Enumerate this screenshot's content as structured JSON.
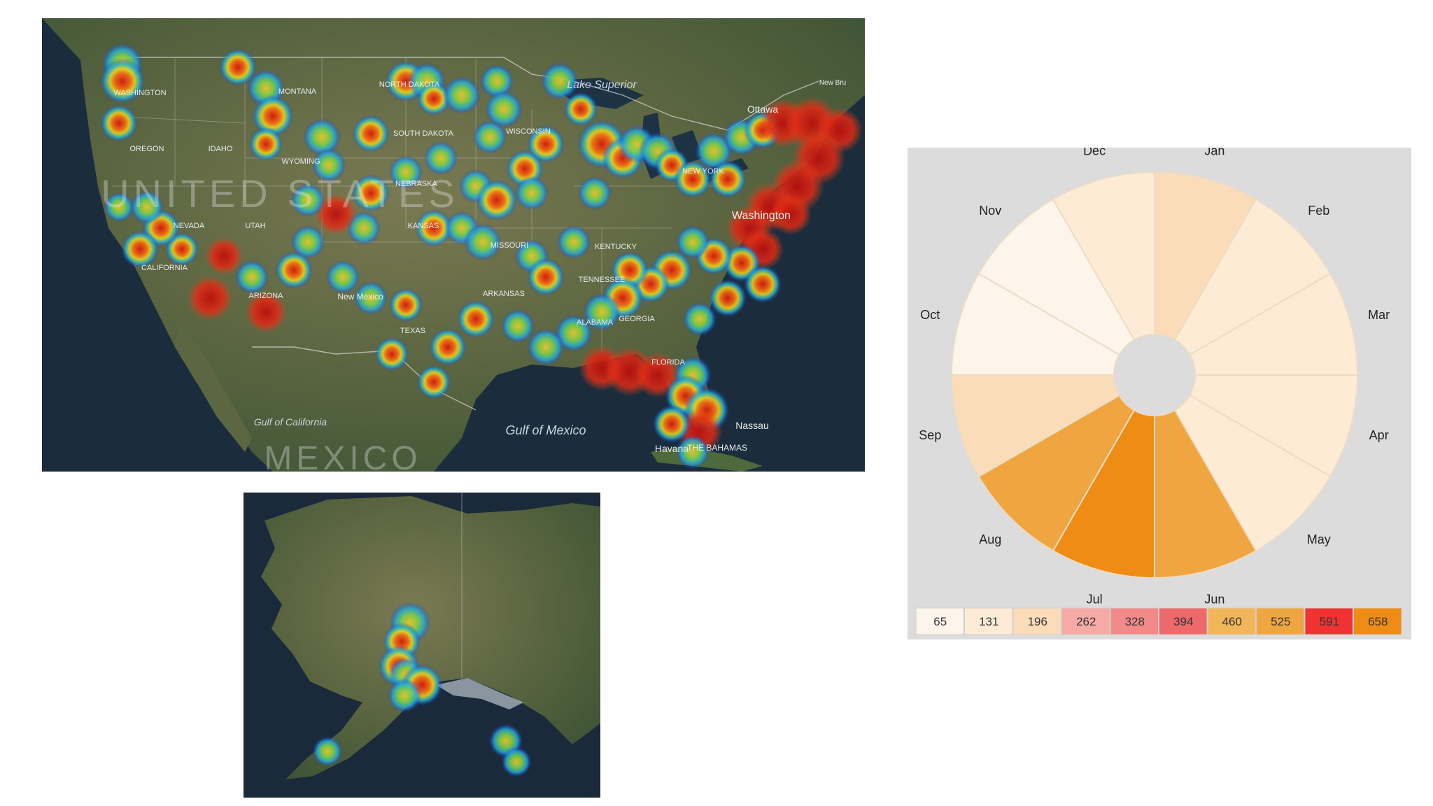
{
  "us_map": {
    "labels": [
      {
        "text": "WASHINGTON",
        "cls": "state"
      },
      {
        "text": "OREGON",
        "cls": "state"
      },
      {
        "text": "IDAHO",
        "cls": "state"
      },
      {
        "text": "MONTANA",
        "cls": "state"
      },
      {
        "text": "WYOMING",
        "cls": "state"
      },
      {
        "text": "NEVADA",
        "cls": "state"
      },
      {
        "text": "UTAH",
        "cls": "state"
      },
      {
        "text": "CALIFORNIA",
        "cls": "state"
      },
      {
        "text": "ARIZONA",
        "cls": "state"
      },
      {
        "text": "New Mexico",
        "cls": "state"
      },
      {
        "text": "NORTH DAKOTA",
        "cls": "state"
      },
      {
        "text": "SOUTH DAKOTA",
        "cls": "state"
      },
      {
        "text": "NEBRASKA",
        "cls": "state"
      },
      {
        "text": "KANSAS",
        "cls": "state"
      },
      {
        "text": "MISSOURI",
        "cls": "state"
      },
      {
        "text": "ARKANSAS",
        "cls": "state"
      },
      {
        "text": "TEXAS",
        "cls": "state"
      },
      {
        "text": "ALABAMA",
        "cls": "state"
      },
      {
        "text": "GEORGIA",
        "cls": "state"
      },
      {
        "text": "TENNESSEE",
        "cls": "state"
      },
      {
        "text": "KENTUCKY",
        "cls": "state"
      },
      {
        "text": "FLORIDA",
        "cls": "state"
      },
      {
        "text": "WISCONSIN",
        "cls": "state"
      },
      {
        "text": "NEW YORK",
        "cls": "state"
      },
      {
        "text": "Ottawa",
        "cls": "city"
      },
      {
        "text": "Washington",
        "cls": "city"
      },
      {
        "text": "Havana",
        "cls": "city"
      },
      {
        "text": "Nassau",
        "cls": "city"
      },
      {
        "text": "THE BAHAMAS",
        "cls": "state"
      },
      {
        "text": "New Bru",
        "cls": "state"
      },
      {
        "text": "Lake Superior",
        "cls": "water"
      },
      {
        "text": "Gulf of Mexico",
        "cls": "water"
      },
      {
        "text": "Gulf of California",
        "cls": "water"
      },
      {
        "text": "UNITED STATES",
        "cls": "country"
      },
      {
        "text": "MEXICO",
        "cls": "country"
      }
    ]
  },
  "chart_data": {
    "type": "radial-heatmap",
    "categories": [
      "Jan",
      "Feb",
      "Mar",
      "Apr",
      "May",
      "Jun",
      "Jul",
      "Aug",
      "Sep",
      "Oct",
      "Nov",
      "Dec"
    ],
    "values": [
      196,
      131,
      131,
      131,
      131,
      525,
      658,
      525,
      196,
      65,
      65,
      131
    ],
    "legend": {
      "thresholds": [
        "65",
        "131",
        "196",
        "262",
        "328",
        "394",
        "460",
        "525",
        "591",
        "658"
      ],
      "colors": [
        "#fdf4ea",
        "#fdebd6",
        "#fadcb8",
        "#f6aaa6",
        "#f38a8a",
        "#ee6a6a",
        "#f2b65a",
        "#f0a640",
        "#f03232",
        "#ef8c14"
      ]
    }
  }
}
